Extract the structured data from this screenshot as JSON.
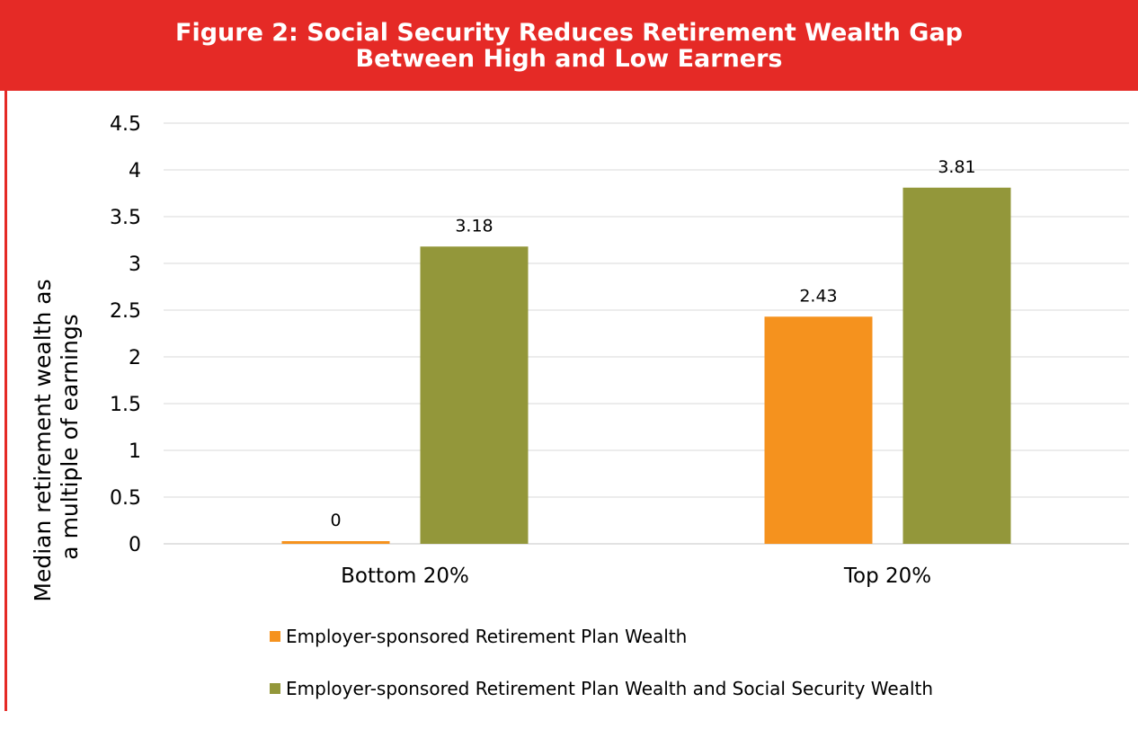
{
  "header": {
    "line1": "Figure 2: Social Security Reduces Retirement Wealth Gap",
    "line2": "Between High and Low Earners"
  },
  "colors": {
    "header_bg": "#e52a26",
    "series1": "#f5921e",
    "series2": "#93973a"
  },
  "chart_data": {
    "type": "bar",
    "title": "Figure 2: Social Security Reduces Retirement Wealth Gap Between High and Low Earners",
    "categories": [
      "Bottom 20%",
      "Top 20%"
    ],
    "series": [
      {
        "name": "Employer-sponsored Retirement Plan Wealth",
        "values": [
          0,
          2.43
        ],
        "labels": [
          "0",
          "2.43"
        ],
        "color": "#f5921e"
      },
      {
        "name": "Employer-sponsored Retirement Plan Wealth and Social Security Wealth",
        "values": [
          3.18,
          3.81
        ],
        "labels": [
          "3.18",
          "3.81"
        ],
        "color": "#93973a"
      }
    ],
    "ylabel_lines": [
      "Median retirement wealth as",
      "a multiple of earnings"
    ],
    "xlabel": "",
    "ylim": [
      0,
      4.5
    ],
    "yticks": [
      "0",
      "0.5",
      "1",
      "1.5",
      "2",
      "2.5",
      "3",
      "3.5",
      "4",
      "4.5"
    ],
    "grid": true,
    "legend_position": "bottom"
  }
}
